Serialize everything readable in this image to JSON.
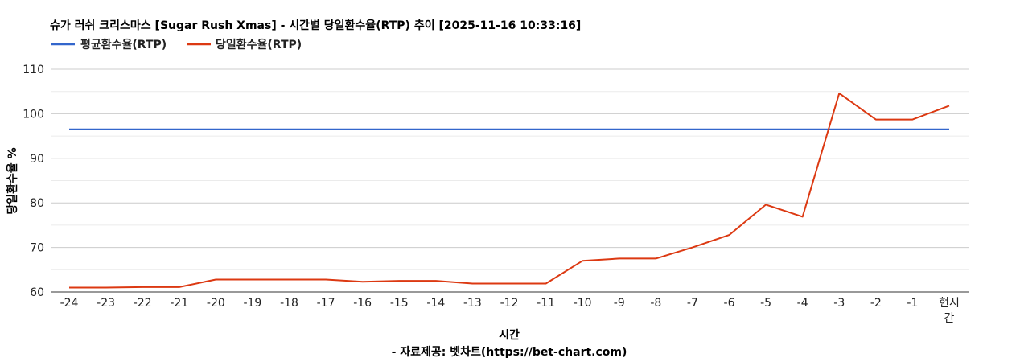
{
  "chart_data": {
    "type": "line",
    "title": "슈가 러쉬 크리스마스 [Sugar Rush Xmas] - 시간별 당일환수율(RTP) 추이 [2025-11-16 10:33:16]",
    "xlabel": "시간",
    "ylabel": "당일환수율 %",
    "source": "- 자료제공: 벳차트(https://bet-chart.com)",
    "categories": [
      "-24",
      "-23",
      "-22",
      "-21",
      "-20",
      "-19",
      "-18",
      "-17",
      "-16",
      "-15",
      "-14",
      "-13",
      "-12",
      "-11",
      "-10",
      "-9",
      "-8",
      "-7",
      "-6",
      "-5",
      "-4",
      "-3",
      "-2",
      "-1",
      "현시간"
    ],
    "category_lines": {
      "현시간": [
        "현시",
        "간"
      ]
    },
    "yticks": [
      60,
      70,
      80,
      90,
      100,
      110
    ],
    "ylim": [
      60,
      110
    ],
    "grid": true,
    "legend_position": "top-left",
    "series": [
      {
        "name": "평균환수율(RTP)",
        "color": "#3366cc",
        "values": [
          96.5,
          96.5,
          96.5,
          96.5,
          96.5,
          96.5,
          96.5,
          96.5,
          96.5,
          96.5,
          96.5,
          96.5,
          96.5,
          96.5,
          96.5,
          96.5,
          96.5,
          96.5,
          96.5,
          96.5,
          96.5,
          96.5,
          96.5,
          96.5,
          96.5
        ]
      },
      {
        "name": "당일환수율(RTP)",
        "color": "#dc3912",
        "values": [
          61.0,
          61.0,
          61.1,
          61.1,
          62.8,
          62.8,
          62.8,
          62.8,
          62.3,
          62.5,
          62.5,
          61.9,
          61.9,
          61.9,
          67.0,
          67.5,
          67.5,
          70.0,
          72.8,
          79.6,
          76.9,
          104.6,
          98.7,
          98.7,
          101.8
        ]
      }
    ]
  }
}
